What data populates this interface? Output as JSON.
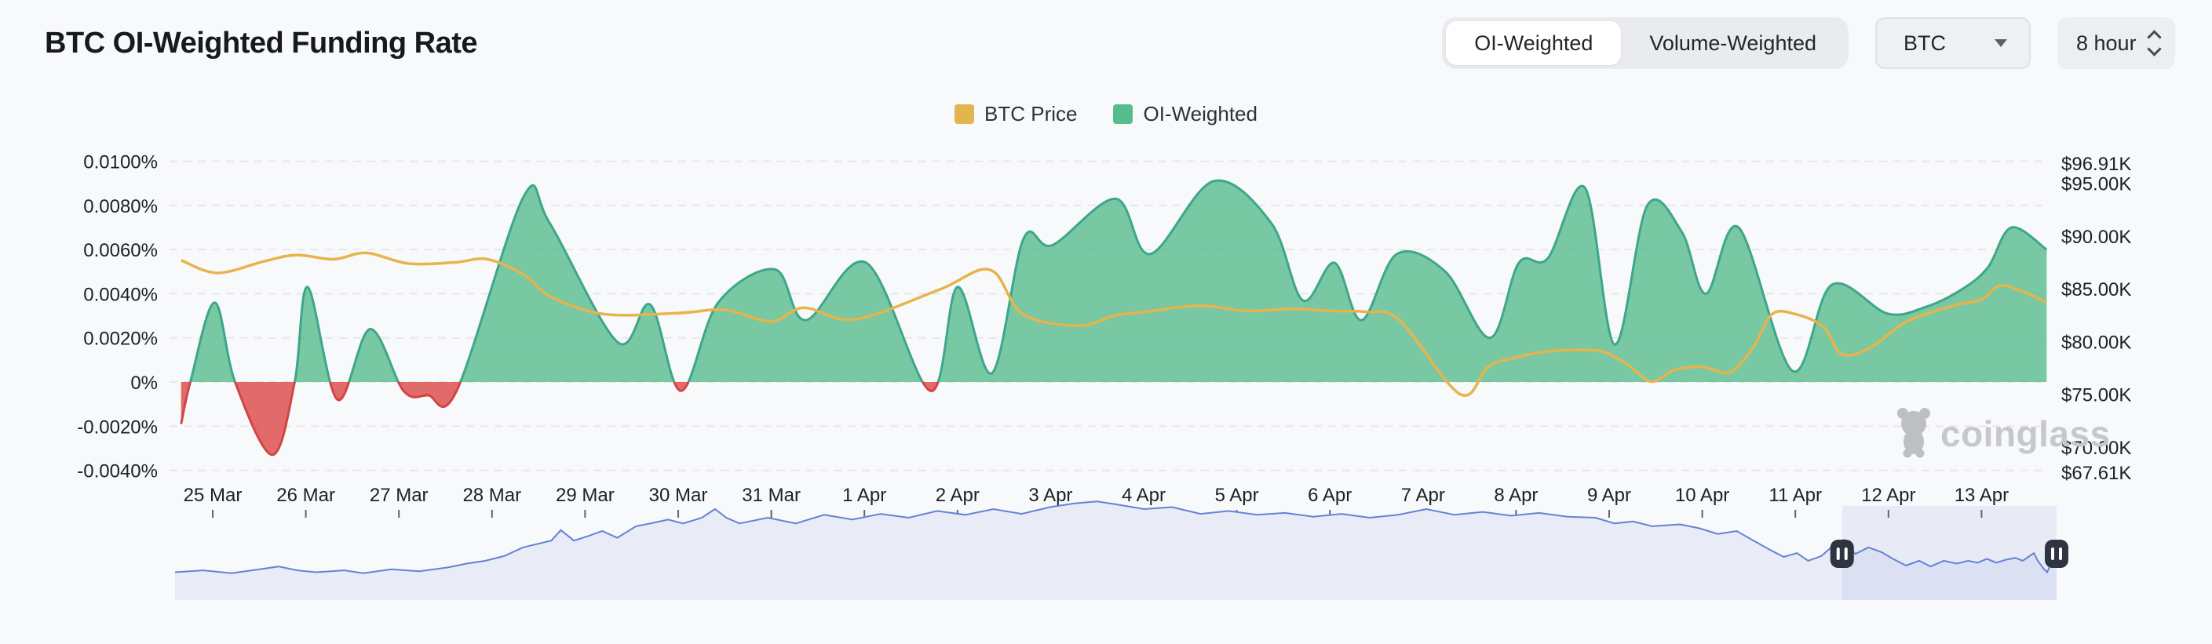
{
  "header": {
    "title": "BTC OI-Weighted Funding Rate"
  },
  "controls": {
    "weight_toggle": {
      "options": [
        "OI-Weighted",
        "Volume-Weighted"
      ],
      "active": "OI-Weighted"
    },
    "symbol_select": {
      "value": "BTC"
    },
    "interval_select": {
      "value": "8 hour"
    }
  },
  "legend": [
    {
      "label": "BTC Price",
      "color": "#e4b54e"
    },
    {
      "label": "OI-Weighted",
      "color": "#55bd8d"
    }
  ],
  "watermark": {
    "text": "coinglass"
  },
  "chart_data": {
    "type": "area",
    "title": "BTC OI-Weighted Funding Rate",
    "x_axis": {
      "labels": [
        "25 Mar",
        "26 Mar",
        "27 Mar",
        "28 Mar",
        "29 Mar",
        "30 Mar",
        "31 Mar",
        "1 Apr",
        "2 Apr",
        "3 Apr",
        "4 Apr",
        "5 Apr",
        "6 Apr",
        "7 Apr",
        "8 Apr",
        "9 Apr",
        "10 Apr",
        "11 Apr",
        "12 Apr",
        "13 Apr"
      ],
      "note": "t in series points = days since 25 Mar"
    },
    "y_axis_left": {
      "unit": "%",
      "labels": [
        "0.0100%",
        "0.0080%",
        "0.0060%",
        "0.0040%",
        "0.0020%",
        "0%",
        "-0.0020%",
        "-0.0040%"
      ],
      "values": [
        0.01,
        0.008,
        0.006,
        0.004,
        0.002,
        0,
        -0.002,
        -0.004
      ],
      "range": [
        -0.004,
        0.01
      ],
      "grid": "dashed"
    },
    "y_axis_right": {
      "unit": "$K",
      "labels": [
        "$96.91K",
        "$95.00K",
        "$90.00K",
        "$85.00K",
        "$80.00K",
        "$75.00K",
        "$70.00K",
        "$67.61K"
      ],
      "values": [
        96.91,
        95.0,
        90.0,
        85.0,
        80.0,
        75.0,
        70.0,
        67.61
      ],
      "range": [
        67.61,
        96.91
      ]
    },
    "series": [
      {
        "name": "OI-Weighted",
        "type": "area",
        "axis": "left",
        "color": "#53ba8c",
        "stroke_positive": "#3da68c",
        "color_negative": "#dd5151",
        "stroke_negative": "#d04545",
        "points": [
          [
            -0.34,
            -0.0019
          ],
          [
            -0.24,
            0.0
          ],
          [
            0.02,
            0.0036
          ],
          [
            0.24,
            0.0
          ],
          [
            0.64,
            -0.0033
          ],
          [
            0.88,
            0.0
          ],
          [
            1.02,
            0.0043
          ],
          [
            1.34,
            -0.0008
          ],
          [
            1.69,
            0.0024
          ],
          [
            2.05,
            -0.0004
          ],
          [
            2.31,
            -0.0006
          ],
          [
            2.62,
            -0.0004
          ],
          [
            3.34,
            0.0084
          ],
          [
            3.62,
            0.0072
          ],
          [
            4.35,
            0.0018
          ],
          [
            4.7,
            0.0035
          ],
          [
            5.03,
            -0.0004
          ],
          [
            5.43,
            0.0036
          ],
          [
            6.04,
            0.0051
          ],
          [
            6.37,
            0.0028
          ],
          [
            7.02,
            0.0054
          ],
          [
            7.71,
            -0.0004
          ],
          [
            8.0,
            0.0043
          ],
          [
            8.37,
            0.0004
          ],
          [
            8.71,
            0.0065
          ],
          [
            9.02,
            0.0062
          ],
          [
            9.7,
            0.0083
          ],
          [
            10.07,
            0.0058
          ],
          [
            10.75,
            0.0091
          ],
          [
            11.37,
            0.0072
          ],
          [
            11.71,
            0.0037
          ],
          [
            12.05,
            0.0054
          ],
          [
            12.34,
            0.0028
          ],
          [
            12.72,
            0.0058
          ],
          [
            13.24,
            0.005
          ],
          [
            13.72,
            0.002
          ],
          [
            14.03,
            0.0054
          ],
          [
            14.34,
            0.0056
          ],
          [
            14.74,
            0.0088
          ],
          [
            15.06,
            0.0017
          ],
          [
            15.41,
            0.008
          ],
          [
            15.78,
            0.0068
          ],
          [
            16.04,
            0.004
          ],
          [
            16.39,
            0.007
          ],
          [
            16.97,
            0.0005
          ],
          [
            17.39,
            0.0044
          ],
          [
            17.99,
            0.0031
          ],
          [
            18.4,
            0.0034
          ],
          [
            18.79,
            0.0042
          ],
          [
            19.07,
            0.0052
          ],
          [
            19.32,
            0.007
          ],
          [
            19.7,
            0.006
          ]
        ]
      },
      {
        "name": "BTC Price",
        "type": "line",
        "axis": "right",
        "color": "#e6b44c",
        "points": [
          [
            -0.34,
            87.7
          ],
          [
            0.05,
            86.5
          ],
          [
            0.55,
            87.6
          ],
          [
            0.9,
            88.2
          ],
          [
            1.3,
            87.8
          ],
          [
            1.65,
            88.4
          ],
          [
            2.1,
            87.4
          ],
          [
            2.6,
            87.5
          ],
          [
            2.95,
            87.8
          ],
          [
            3.35,
            86.3
          ],
          [
            3.62,
            84.3
          ],
          [
            4.2,
            82.6
          ],
          [
            5.0,
            82.7
          ],
          [
            5.5,
            83.0
          ],
          [
            6.0,
            81.9
          ],
          [
            6.35,
            83.2
          ],
          [
            6.9,
            82.1
          ],
          [
            7.8,
            84.9
          ],
          [
            8.35,
            86.8
          ],
          [
            8.7,
            82.6
          ],
          [
            9.3,
            81.5
          ],
          [
            9.7,
            82.5
          ],
          [
            10.0,
            82.8
          ],
          [
            10.6,
            83.4
          ],
          [
            11.1,
            82.9
          ],
          [
            11.6,
            83.1
          ],
          [
            12.0,
            82.9
          ],
          [
            12.4,
            82.8
          ],
          [
            12.75,
            82.0
          ],
          [
            13.4,
            75.0
          ],
          [
            13.7,
            77.6
          ],
          [
            14.0,
            78.5
          ],
          [
            14.4,
            79.1
          ],
          [
            14.9,
            79.1
          ],
          [
            15.2,
            77.8
          ],
          [
            15.45,
            76.2
          ],
          [
            15.7,
            77.3
          ],
          [
            16.0,
            77.6
          ],
          [
            16.3,
            77.1
          ],
          [
            16.55,
            79.5
          ],
          [
            16.75,
            82.6
          ],
          [
            17.0,
            82.6
          ],
          [
            17.3,
            81.4
          ],
          [
            17.5,
            78.8
          ],
          [
            17.8,
            79.4
          ],
          [
            18.2,
            81.9
          ],
          [
            18.7,
            83.4
          ],
          [
            19.0,
            84.0
          ],
          [
            19.2,
            85.3
          ],
          [
            19.45,
            84.7
          ],
          [
            19.7,
            83.7
          ]
        ]
      }
    ],
    "navigator": {
      "window": [
        0.886,
        1.0
      ],
      "line_color": "#6681d6",
      "fill_color": "#e9ecf6",
      "selection_color": "#6377d4",
      "handle_color": "#2e3440",
      "points": [
        [
          0,
          0.25
        ],
        [
          0.015,
          0.27
        ],
        [
          0.03,
          0.24
        ],
        [
          0.045,
          0.28
        ],
        [
          0.055,
          0.31
        ],
        [
          0.065,
          0.27
        ],
        [
          0.075,
          0.25
        ],
        [
          0.09,
          0.27
        ],
        [
          0.1,
          0.24
        ],
        [
          0.115,
          0.28
        ],
        [
          0.13,
          0.26
        ],
        [
          0.145,
          0.3
        ],
        [
          0.155,
          0.34
        ],
        [
          0.165,
          0.37
        ],
        [
          0.175,
          0.42
        ],
        [
          0.185,
          0.51
        ],
        [
          0.2,
          0.58
        ],
        [
          0.205,
          0.69
        ],
        [
          0.212,
          0.58
        ],
        [
          0.22,
          0.63
        ],
        [
          0.227,
          0.68
        ],
        [
          0.235,
          0.61
        ],
        [
          0.245,
          0.73
        ],
        [
          0.255,
          0.77
        ],
        [
          0.262,
          0.8
        ],
        [
          0.27,
          0.76
        ],
        [
          0.28,
          0.82
        ],
        [
          0.287,
          0.91
        ],
        [
          0.293,
          0.82
        ],
        [
          0.3,
          0.76
        ],
        [
          0.315,
          0.82
        ],
        [
          0.33,
          0.76
        ],
        [
          0.345,
          0.85
        ],
        [
          0.36,
          0.8
        ],
        [
          0.375,
          0.86
        ],
        [
          0.39,
          0.82
        ],
        [
          0.405,
          0.89
        ],
        [
          0.42,
          0.85
        ],
        [
          0.435,
          0.91
        ],
        [
          0.45,
          0.86
        ],
        [
          0.465,
          0.93
        ],
        [
          0.478,
          0.97
        ],
        [
          0.49,
          0.99
        ],
        [
          0.5,
          0.96
        ],
        [
          0.515,
          0.91
        ],
        [
          0.53,
          0.93
        ],
        [
          0.545,
          0.86
        ],
        [
          0.56,
          0.89
        ],
        [
          0.575,
          0.85
        ],
        [
          0.59,
          0.87
        ],
        [
          0.605,
          0.83
        ],
        [
          0.62,
          0.86
        ],
        [
          0.635,
          0.82
        ],
        [
          0.65,
          0.85
        ],
        [
          0.665,
          0.91
        ],
        [
          0.68,
          0.85
        ],
        [
          0.695,
          0.88
        ],
        [
          0.71,
          0.84
        ],
        [
          0.725,
          0.87
        ],
        [
          0.74,
          0.83
        ],
        [
          0.755,
          0.82
        ],
        [
          0.765,
          0.76
        ],
        [
          0.775,
          0.78
        ],
        [
          0.785,
          0.73
        ],
        [
          0.8,
          0.75
        ],
        [
          0.81,
          0.71
        ],
        [
          0.82,
          0.65
        ],
        [
          0.83,
          0.68
        ],
        [
          0.838,
          0.59
        ],
        [
          0.848,
          0.48
        ],
        [
          0.855,
          0.41
        ],
        [
          0.862,
          0.45
        ],
        [
          0.868,
          0.37
        ],
        [
          0.875,
          0.42
        ],
        [
          0.882,
          0.54
        ],
        [
          0.887,
          0.59
        ],
        [
          0.893,
          0.44
        ],
        [
          0.9,
          0.51
        ],
        [
          0.907,
          0.46
        ],
        [
          0.913,
          0.39
        ],
        [
          0.92,
          0.32
        ],
        [
          0.927,
          0.37
        ],
        [
          0.933,
          0.31
        ],
        [
          0.94,
          0.37
        ],
        [
          0.947,
          0.34
        ],
        [
          0.953,
          0.37
        ],
        [
          0.958,
          0.35
        ],
        [
          0.963,
          0.39
        ],
        [
          0.968,
          0.35
        ],
        [
          0.973,
          0.38
        ],
        [
          0.978,
          0.4
        ],
        [
          0.982,
          0.37
        ],
        [
          0.985,
          0.41
        ],
        [
          0.988,
          0.45
        ],
        [
          0.99,
          0.37
        ],
        [
          0.993,
          0.29
        ],
        [
          0.995,
          0.25
        ],
        [
          0.997,
          0.34
        ],
        [
          1,
          0.52
        ]
      ]
    },
    "grid_color": "#e7e8ea",
    "legend_position": "top-center"
  }
}
